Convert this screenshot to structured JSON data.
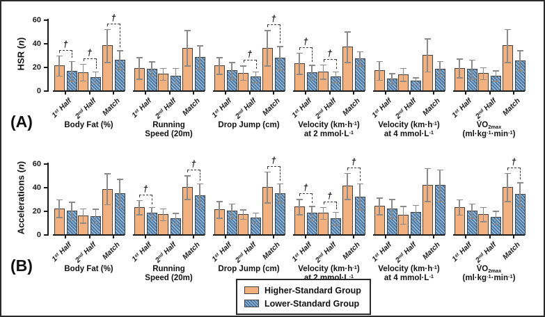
{
  "figure_title": "",
  "sig_marker": "†",
  "chart_data": {
    "type": "bar",
    "legend_position": "bottom-center",
    "grid": false,
    "ylim": [
      0,
      60
    ],
    "yticks": [
      0,
      20,
      40,
      60
    ],
    "x_tick_labels": [
      [
        {
          "t": "1"
        },
        {
          "t": "st",
          "s": "sup"
        },
        {
          "t": " Half"
        }
      ],
      [
        {
          "t": "2"
        },
        {
          "t": "nd",
          "s": "sup"
        },
        {
          "t": " Half"
        }
      ],
      [
        {
          "t": "Match"
        }
      ]
    ],
    "legend": [
      {
        "name": "Higher-Standard Group",
        "style": "orange-solid"
      },
      {
        "name": "Lower-Standard Group",
        "style": "blue-hatched"
      }
    ],
    "colors": {
      "higher_fill": "#F2B17E",
      "lower_fill": "#4E7CA9",
      "lower_hatch": "#A4C0DA",
      "bar_border": "#3F3F3F",
      "error_bar": "#8A8A8A",
      "axis": "#1A1A1A",
      "dagger": "#3A3A3A"
    },
    "panels": [
      {
        "panel_label": "(A)",
        "ylabel": [
          {
            "t": "HSR ("
          },
          {
            "t": "n",
            "s": "i"
          },
          {
            "t": ")"
          }
        ],
        "groups": [
          {
            "name_lines": [
              [
                {
                  "t": "Body Fat (%)"
                }
              ]
            ],
            "higher": {
              "values": [
                21,
                15.5,
                38
              ],
              "sd": [
                8.5,
                7,
                14
              ]
            },
            "lower": {
              "values": [
                16.5,
                11,
                26
              ],
              "sd": [
                8.5,
                5,
                8
              ]
            },
            "daggers": [
              true,
              true,
              true
            ]
          },
          {
            "name_lines": [
              [
                {
                  "t": "Running"
                }
              ],
              [
                {
                  "t": "Speed (20m)"
                }
              ]
            ],
            "higher": {
              "values": [
                19,
                14,
                36
              ],
              "sd": [
                9,
                5,
                15
              ]
            },
            "lower": {
              "values": [
                18.5,
                12.5,
                28
              ],
              "sd": [
                6,
                6.5,
                10
              ]
            },
            "daggers": [
              false,
              false,
              false
            ]
          },
          {
            "name_lines": [
              [
                {
                  "t": "Drop Jump (cm)"
                }
              ]
            ],
            "higher": {
              "values": [
                21,
                15,
                36
              ],
              "sd": [
                7,
                6,
                15
              ]
            },
            "lower": {
              "values": [
                17,
                11.5,
                27.5
              ],
              "sd": [
                7,
                4.5,
                10
              ]
            },
            "daggers": [
              false,
              true,
              true
            ]
          },
          {
            "name_lines": [
              [
                {
                  "t": "Velocity (km·h"
                },
                {
                  "t": "-1",
                  "s": "sup"
                },
                {
                  "t": ")"
                }
              ],
              [
                {
                  "t": "at 2 mmol·L"
                },
                {
                  "t": "-1",
                  "s": "sup"
                }
              ]
            ],
            "higher": {
              "values": [
                23,
                16,
                37
              ],
              "sd": [
                9,
                6,
                13
              ]
            },
            "lower": {
              "values": [
                15.5,
                11.5,
                27
              ],
              "sd": [
                6,
                4.5,
                6
              ]
            },
            "daggers": [
              true,
              true,
              false
            ]
          },
          {
            "name_lines": [
              [
                {
                  "t": "Velocity (km·h"
                },
                {
                  "t": "-1",
                  "s": "sup"
                },
                {
                  "t": ")"
                }
              ],
              [
                {
                  "t": "at 4 mmol·L"
                },
                {
                  "t": "-1",
                  "s": "sup"
                }
              ]
            ],
            "higher": {
              "values": [
                17,
                13.5,
                30
              ],
              "sd": [
                8,
                5.5,
                14
              ]
            },
            "lower": {
              "values": [
                10,
                8,
                18.5
              ],
              "sd": [
                4.5,
                3,
                6.5
              ]
            },
            "daggers": [
              false,
              false,
              false
            ]
          },
          {
            "name_lines": [
              [
                {
                  "t": "V̇O"
                },
                {
                  "t": "2max",
                  "s": "sub"
                }
              ],
              [
                {
                  "t": "(ml·kg"
                },
                {
                  "t": "-1",
                  "s": "sup"
                },
                {
                  "t": "·min"
                },
                {
                  "t": "-1",
                  "s": "sup"
                },
                {
                  "t": ")"
                }
              ]
            ],
            "higher": {
              "values": [
                19,
                14.5,
                38
              ],
              "sd": [
                8,
                5,
                14
              ]
            },
            "lower": {
              "values": [
                18,
                12.5,
                25.5
              ],
              "sd": [
                8,
                4.5,
                8.5
              ]
            },
            "daggers": [
              false,
              false,
              false
            ]
          }
        ]
      },
      {
        "panel_label": "(B)",
        "ylabel": [
          {
            "t": "Accelerations ("
          },
          {
            "t": "n",
            "s": "i"
          },
          {
            "t": ")"
          }
        ],
        "groups": [
          {
            "name_lines": [
              [
                {
                  "t": "Body Fat (%)"
                }
              ]
            ],
            "higher": {
              "values": [
                22,
                16,
                38.5
              ],
              "sd": [
                7.5,
                6,
                13
              ]
            },
            "lower": {
              "values": [
                20,
                15.5,
                35
              ],
              "sd": [
                7.5,
                6,
                12
              ]
            },
            "daggers": [
              false,
              false,
              false
            ]
          },
          {
            "name_lines": [
              [
                {
                  "t": "Running"
                }
              ],
              [
                {
                  "t": "Speed (20m)"
                }
              ]
            ],
            "higher": {
              "values": [
                23,
                17,
                40
              ],
              "sd": [
                6,
                5,
                10
              ]
            },
            "lower": {
              "values": [
                18,
                13.5,
                33
              ],
              "sd": [
                5,
                4.5,
                10
              ]
            },
            "daggers": [
              true,
              false,
              true
            ]
          },
          {
            "name_lines": [
              [
                {
                  "t": "Drop Jump (cm)"
                }
              ]
            ],
            "higher": {
              "values": [
                21,
                17,
                40
              ],
              "sd": [
                7,
                4,
                13
              ]
            },
            "lower": {
              "values": [
                20,
                14,
                35
              ],
              "sd": [
                6,
                4.5,
                8
              ]
            },
            "daggers": [
              false,
              false,
              true
            ]
          },
          {
            "name_lines": [
              [
                {
                  "t": "Velocity (km·h"
                },
                {
                  "t": "-1",
                  "s": "sup"
                },
                {
                  "t": ")"
                }
              ],
              [
                {
                  "t": "at 2 mmol·L"
                },
                {
                  "t": "-1",
                  "s": "sup"
                }
              ]
            ],
            "higher": {
              "values": [
                23.5,
                18,
                41
              ],
              "sd": [
                6.5,
                5,
                11
              ]
            },
            "lower": {
              "values": [
                18,
                13.5,
                32
              ],
              "sd": [
                6,
                5.5,
                11
              ]
            },
            "daggers": [
              true,
              true,
              true
            ]
          },
          {
            "name_lines": [
              [
                {
                  "t": "Velocity (km·h"
                },
                {
                  "t": "-1",
                  "s": "sup"
                },
                {
                  "t": ")"
                }
              ],
              [
                {
                  "t": "at 4 mmol·L"
                },
                {
                  "t": "-1",
                  "s": "sup"
                }
              ]
            ],
            "higher": {
              "values": [
                24,
                16.5,
                42
              ],
              "sd": [
                7,
                7.5,
                14
              ]
            },
            "lower": {
              "values": [
                22,
                19,
                41.5
              ],
              "sd": [
                8,
                6,
                13.5
              ]
            },
            "daggers": [
              false,
              false,
              false
            ]
          },
          {
            "name_lines": [
              [
                {
                  "t": "V̇O"
                },
                {
                  "t": "2max",
                  "s": "sub"
                }
              ],
              [
                {
                  "t": "(ml·kg"
                },
                {
                  "t": "-1",
                  "s": "sup"
                },
                {
                  "t": "·min"
                },
                {
                  "t": "-1",
                  "s": "sup"
                },
                {
                  "t": ")"
                }
              ]
            ],
            "higher": {
              "values": [
                23,
                17,
                40
              ],
              "sd": [
                6.5,
                6,
                12
              ]
            },
            "lower": {
              "values": [
                20,
                14.5,
                34
              ],
              "sd": [
                6,
                5.5,
                10
              ]
            },
            "daggers": [
              false,
              false,
              true
            ]
          }
        ]
      }
    ]
  }
}
